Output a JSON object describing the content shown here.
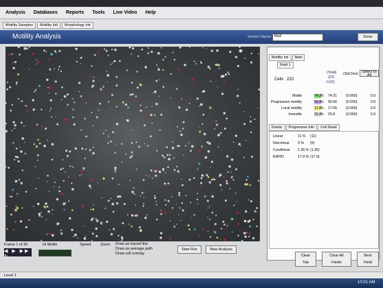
{
  "menu": [
    "Analysis",
    "Databases",
    "Reports",
    "Tools",
    "Live Video",
    "Help"
  ],
  "tabs": [
    "Motility Samples",
    "Motility Init",
    "Morphology Init"
  ],
  "title": "Motility Analysis",
  "sample_label": "Semen Name:",
  "sample_value": "Bull",
  "done": "Done",
  "panel": {
    "tabs": [
      "Motility Init",
      "Note"
    ],
    "field": "Field 1",
    "cells_label": "Cells",
    "cells": "223",
    "headers": [
      "(Total)",
      "(Std Dev)",
      "Select to All"
    ],
    "total_sub": [
      "223",
      "0.02)"
    ],
    "rows": [
      [
        "Motile",
        "74.2",
        "%",
        "74.21",
        "(0.000)",
        "0.0"
      ],
      [
        "Progressive motility",
        "56.6",
        "%",
        "56.56",
        "(0.000)",
        "0.0"
      ],
      [
        "Local motility",
        "17.6",
        "%",
        "17.65",
        "(0.000)",
        "0.0"
      ],
      [
        "Immotile",
        "25.8",
        "%",
        "25.8",
        "(0.000)",
        "0.0"
      ]
    ]
  },
  "kinetic": {
    "tabs": [
      "Kinetic",
      "Progressive Info",
      "Cell Detail"
    ],
    "rows": [
      [
        "Linear",
        "11 %",
        "(11)"
      ],
      [
        "Non-linear",
        "0 %",
        "(0)"
      ],
      [
        "Curvilinear",
        "1.35 %",
        "(1.35)"
      ],
      [
        "RAPID",
        "17.9 %",
        "(17.9)"
      ]
    ]
  },
  "controls": {
    "frame": "Frame 1 of 30",
    "hi_motile": "Hi Motile",
    "speed": "Speed",
    "zoom": "Zoom",
    "options": [
      "Draw as traced line",
      "Draw as average path",
      "Draw cell overlay"
    ],
    "buttons": [
      "Start Run",
      "New Analysis"
    ]
  },
  "panel_buttons": [
    "Clear Tab",
    "Clear All Fields",
    "Next Field"
  ],
  "status": "Level 1",
  "clock": "10:01 AM"
}
